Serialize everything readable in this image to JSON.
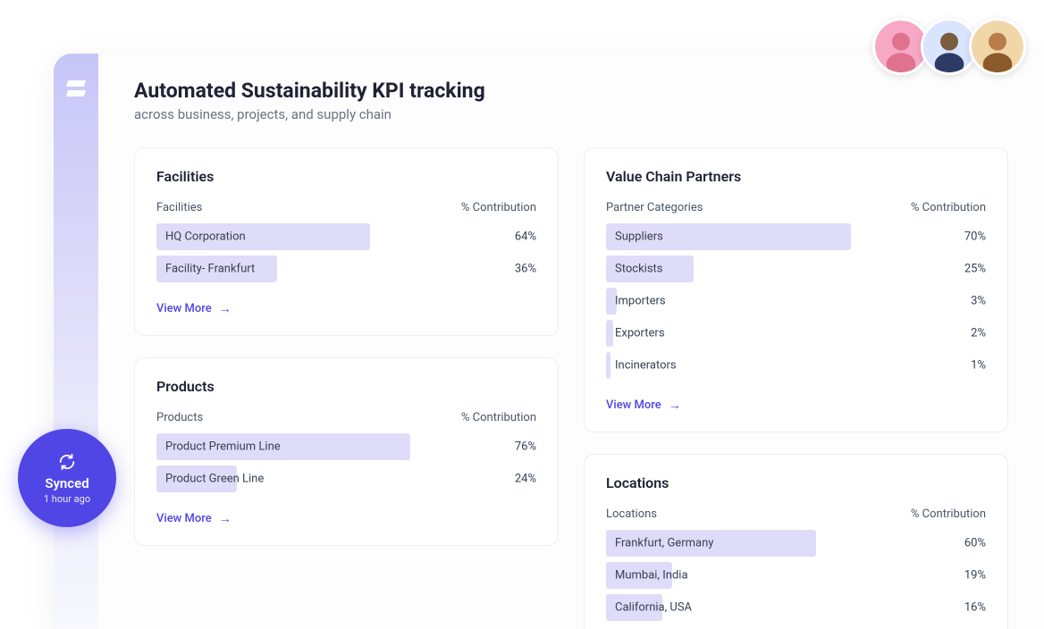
{
  "header": {
    "title": "Automated Sustainability KPI tracking",
    "subtitle": "across business, projects, and supply chain"
  },
  "sync": {
    "label": "Synced",
    "time": "1 hour ago"
  },
  "viewMoreLabel": "View More",
  "colHeaderRight": "% Contribution",
  "colors": {
    "bar": "#dfdcf9",
    "accent": "#5046e5",
    "cardBorder": "#eceef3",
    "textPrimary": "#1e2233",
    "textSecondary": "#6b7280",
    "avatar1": "#f6a8c4",
    "avatar2": "#d9e4ff",
    "avatar3": "#f1d7a8"
  },
  "avatars": [
    {
      "name": "avatar-1"
    },
    {
      "name": "avatar-2"
    },
    {
      "name": "avatar-3"
    }
  ],
  "cards": {
    "facilities": {
      "title": "Facilities",
      "colLeft": "Facilities",
      "rows": [
        {
          "label": "HQ Corporation",
          "value": 64,
          "display": "64%"
        },
        {
          "label": "Facility- Frankfurt",
          "value": 36,
          "display": "36%"
        }
      ]
    },
    "products": {
      "title": "Products",
      "colLeft": "Products",
      "rows": [
        {
          "label": "Product Premium Line",
          "value": 76,
          "display": "76%"
        },
        {
          "label": "Product Green Line",
          "value": 24,
          "display": "24%"
        }
      ]
    },
    "partners": {
      "title": "Value Chain Partners",
      "colLeft": "Partner Categories",
      "rows": [
        {
          "label": "Suppliers",
          "value": 70,
          "display": "70%"
        },
        {
          "label": "Stockists",
          "value": 25,
          "display": "25%"
        },
        {
          "label": "Importers",
          "value": 3,
          "display": "3%"
        },
        {
          "label": "Exporters",
          "value": 2,
          "display": "2%"
        },
        {
          "label": "Incinerators",
          "value": 1,
          "display": "1%"
        }
      ]
    },
    "locations": {
      "title": "Locations",
      "colLeft": "Locations",
      "rows": [
        {
          "label": "Frankfurt, Germany",
          "value": 60,
          "display": "60%"
        },
        {
          "label": "Mumbai, India",
          "value": 19,
          "display": "19%"
        },
        {
          "label": "California, USA",
          "value": 16,
          "display": "16%"
        }
      ]
    }
  }
}
